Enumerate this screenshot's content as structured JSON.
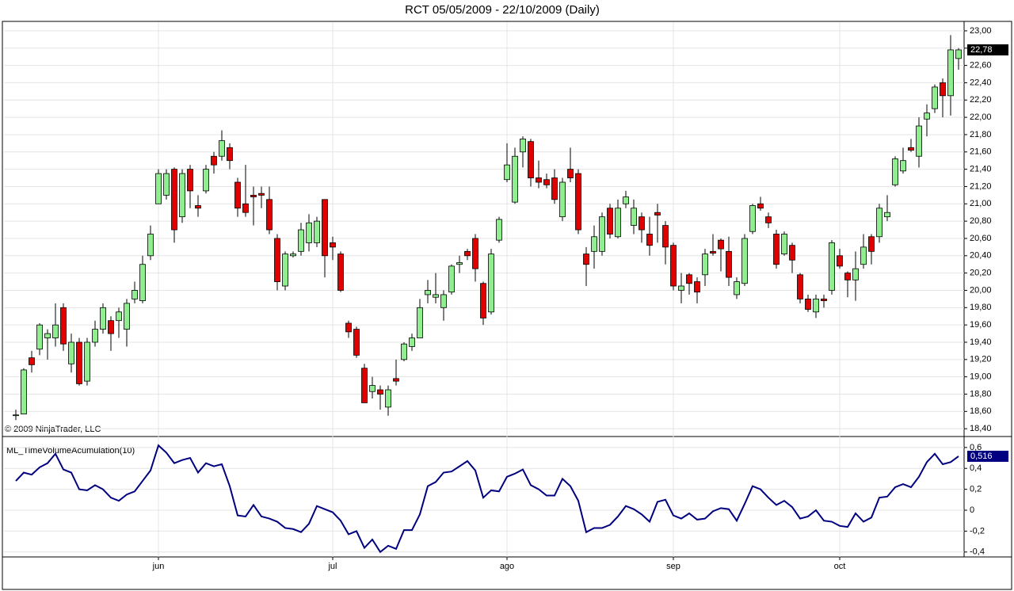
{
  "chart_data": [
    {
      "type": "candlestick",
      "title": "RCT  05/05/2009 - 22/10/2009 (Daily)",
      "copyright": "© 2009 NinjaTrader, LLC",
      "up_color": "#90ee90",
      "down_color": "#e00000",
      "grid": true,
      "open": [
        18.56,
        18.57,
        19.22,
        19.32,
        19.45,
        19.45,
        19.8,
        19.15,
        19.4,
        18.95,
        19.4,
        19.55,
        19.65,
        19.65,
        19.55,
        19.9,
        19.88,
        20.4,
        21.0,
        21.1,
        21.4,
        20.85,
        21.4,
        20.98,
        21.15,
        21.55,
        21.55,
        21.65,
        21.25,
        21.0,
        21.1,
        21.12,
        21.05,
        20.6,
        20.05,
        20.4,
        20.45,
        20.55,
        20.55,
        21.05,
        20.55,
        20.42,
        19.62,
        19.55,
        19.1,
        18.83,
        18.85,
        18.65,
        18.98,
        19.2,
        19.35,
        19.45,
        19.95,
        19.92,
        19.8,
        19.98,
        20.3,
        20.45,
        20.6,
        20.08,
        19.75,
        20.58,
        21.28,
        21.02,
        21.6,
        21.72,
        21.3,
        21.28,
        21.3,
        20.85,
        21.4,
        21.35,
        20.42,
        20.45,
        20.45,
        20.95,
        20.62,
        21.0,
        20.75,
        20.85,
        20.65,
        20.9,
        20.75,
        20.52,
        20.0,
        20.18,
        20.1,
        20.18,
        20.45,
        20.58,
        20.45,
        19.95,
        20.08,
        20.68,
        21.0,
        20.85,
        20.65,
        20.42,
        20.52,
        20.18,
        19.9,
        19.75,
        19.9,
        20.0,
        20.4,
        20.2,
        20.12,
        20.3,
        20.62,
        20.62,
        20.85,
        21.22,
        21.38,
        21.65,
        21.55,
        21.98,
        22.1,
        22.4,
        22.25,
        22.68
      ],
      "high": [
        18.62,
        19.1,
        19.3,
        19.62,
        19.55,
        19.85,
        19.85,
        19.5,
        19.45,
        19.45,
        19.65,
        19.85,
        19.7,
        19.8,
        19.9,
        20.1,
        20.4,
        20.75,
        21.4,
        21.4,
        21.42,
        21.4,
        21.45,
        21.1,
        21.45,
        21.6,
        21.85,
        21.7,
        21.3,
        21.45,
        21.2,
        21.2,
        21.2,
        20.65,
        20.45,
        20.45,
        20.78,
        20.88,
        20.85,
        21.05,
        20.62,
        20.45,
        19.65,
        19.58,
        19.15,
        19.0,
        18.9,
        18.9,
        19.2,
        19.4,
        19.5,
        19.9,
        20.12,
        20.2,
        20.0,
        20.3,
        20.4,
        20.48,
        20.65,
        20.1,
        20.48,
        20.85,
        21.7,
        21.65,
        21.78,
        21.75,
        21.5,
        21.35,
        21.4,
        21.3,
        21.65,
        21.4,
        20.5,
        20.75,
        20.9,
        21.0,
        21.05,
        21.15,
        21.05,
        20.9,
        20.85,
        21.0,
        20.8,
        20.55,
        20.2,
        20.2,
        20.15,
        20.48,
        20.65,
        20.6,
        20.62,
        20.15,
        20.65,
        21.0,
        21.08,
        20.9,
        20.7,
        20.68,
        20.55,
        20.2,
        19.95,
        19.95,
        19.95,
        20.58,
        20.48,
        20.22,
        20.45,
        20.65,
        20.65,
        21.0,
        21.1,
        21.55,
        21.65,
        21.75,
        22.0,
        22.15,
        22.38,
        22.45,
        22.95,
        22.8
      ],
      "low": [
        18.5,
        18.57,
        19.05,
        19.25,
        19.2,
        19.35,
        19.3,
        19.05,
        18.9,
        18.9,
        19.35,
        19.5,
        19.3,
        19.45,
        19.35,
        19.85,
        19.85,
        20.35,
        21.0,
        21.05,
        20.55,
        20.78,
        20.95,
        20.85,
        21.12,
        21.35,
        21.5,
        21.4,
        20.85,
        20.85,
        20.75,
        20.95,
        20.65,
        20.0,
        20.0,
        20.38,
        20.4,
        20.45,
        20.5,
        20.15,
        20.35,
        19.98,
        19.45,
        19.22,
        18.7,
        18.75,
        18.62,
        18.55,
        18.9,
        19.18,
        19.3,
        19.45,
        19.85,
        19.85,
        19.65,
        19.95,
        20.2,
        20.35,
        20.1,
        19.6,
        19.72,
        20.55,
        21.25,
        21.0,
        21.42,
        21.2,
        21.18,
        21.18,
        21.0,
        20.8,
        21.25,
        20.65,
        20.05,
        20.25,
        20.4,
        20.6,
        20.6,
        20.95,
        20.65,
        20.55,
        20.4,
        20.55,
        20.3,
        20.0,
        19.85,
        19.95,
        19.85,
        20.05,
        20.4,
        20.22,
        20.05,
        19.9,
        20.05,
        20.65,
        20.92,
        20.72,
        20.25,
        20.4,
        20.2,
        19.85,
        19.75,
        19.68,
        19.8,
        19.95,
        20.25,
        19.92,
        19.88,
        20.25,
        20.3,
        20.55,
        20.8,
        21.2,
        21.35,
        21.6,
        21.42,
        21.78,
        22.05,
        22.0,
        22.02,
        22.55
      ],
      "close": [
        18.56,
        19.08,
        19.14,
        19.6,
        19.5,
        19.6,
        19.38,
        19.4,
        18.92,
        19.4,
        19.55,
        19.8,
        19.5,
        19.75,
        19.85,
        20.0,
        20.3,
        20.65,
        21.35,
        21.35,
        20.7,
        21.35,
        21.15,
        20.95,
        21.4,
        21.45,
        21.73,
        21.5,
        20.95,
        20.9,
        21.08,
        21.1,
        20.7,
        20.1,
        20.42,
        20.42,
        20.7,
        20.78,
        20.8,
        20.4,
        20.5,
        20.0,
        19.52,
        19.25,
        18.7,
        18.9,
        18.8,
        18.85,
        18.95,
        19.38,
        19.45,
        19.8,
        20.0,
        19.95,
        19.95,
        20.28,
        20.32,
        20.4,
        20.25,
        19.68,
        20.42,
        20.82,
        21.45,
        21.55,
        21.75,
        21.3,
        21.25,
        21.22,
        21.05,
        21.25,
        21.3,
        20.7,
        20.3,
        20.62,
        20.85,
        20.65,
        20.95,
        21.08,
        20.95,
        20.7,
        20.52,
        20.87,
        20.5,
        20.05,
        20.05,
        20.08,
        19.98,
        20.42,
        20.43,
        20.48,
        20.15,
        20.1,
        20.6,
        20.98,
        20.95,
        20.78,
        20.3,
        20.65,
        20.35,
        19.9,
        19.78,
        19.9,
        19.88,
        20.55,
        20.28,
        20.12,
        20.25,
        20.5,
        20.45,
        20.95,
        20.9,
        21.52,
        21.5,
        21.62,
        21.9,
        22.05,
        22.35,
        22.25,
        22.78,
        22.78
      ],
      "last_value_label": "22,78",
      "xlim": [
        -1.5,
        119.7
      ],
      "xticks": [
        {
          "value": 18,
          "label": "jun"
        },
        {
          "value": 40,
          "label": "jul"
        },
        {
          "value": 62,
          "label": "ago"
        },
        {
          "value": 83,
          "label": "sep"
        },
        {
          "value": 104,
          "label": "oct"
        }
      ],
      "ylim": [
        18.31,
        23.1
      ],
      "yticks": [
        {
          "value": 18.4,
          "label": "18,40"
        },
        {
          "value": 18.6,
          "label": "18,60"
        },
        {
          "value": 18.8,
          "label": "18,80"
        },
        {
          "value": 19,
          "label": "19,00"
        },
        {
          "value": 19.2,
          "label": "19,20"
        },
        {
          "value": 19.4,
          "label": "19,40"
        },
        {
          "value": 19.6,
          "label": "19,60"
        },
        {
          "value": 19.8,
          "label": "19,80"
        },
        {
          "value": 20,
          "label": "20,00"
        },
        {
          "value": 20.2,
          "label": "20,20"
        },
        {
          "value": 20.4,
          "label": "20,40"
        },
        {
          "value": 20.6,
          "label": "20,60"
        },
        {
          "value": 20.8,
          "label": "20,80"
        },
        {
          "value": 21,
          "label": "21,00"
        },
        {
          "value": 21.2,
          "label": "21,20"
        },
        {
          "value": 21.4,
          "label": "21,40"
        },
        {
          "value": 21.6,
          "label": "21,60"
        },
        {
          "value": 21.8,
          "label": "21,80"
        },
        {
          "value": 22,
          "label": "22,00"
        },
        {
          "value": 22.2,
          "label": "22,20"
        },
        {
          "value": 22.4,
          "label": "22,40"
        },
        {
          "value": 22.6,
          "label": "22,60"
        },
        {
          "value": 22.8,
          "label": "22,80"
        },
        {
          "value": 23,
          "label": "23,00"
        }
      ]
    },
    {
      "type": "line",
      "title": "ML_TimeVolumeAcumulation(10)",
      "grid": true,
      "series": [
        {
          "color": "#000080",
          "values": [
            0.28,
            0.36,
            0.34,
            0.41,
            0.45,
            0.54,
            0.39,
            0.36,
            0.2,
            0.19,
            0.24,
            0.2,
            0.12,
            0.09,
            0.15,
            0.18,
            0.28,
            0.38,
            0.62,
            0.55,
            0.45,
            0.48,
            0.5,
            0.36,
            0.45,
            0.42,
            0.44,
            0.23,
            -0.05,
            -0.06,
            0.05,
            -0.06,
            -0.08,
            -0.11,
            -0.17,
            -0.18,
            -0.21,
            -0.13,
            0.04,
            0.01,
            -0.02,
            -0.1,
            -0.23,
            -0.2,
            -0.36,
            -0.28,
            -0.4,
            -0.34,
            -0.37,
            -0.19,
            -0.19,
            -0.04,
            0.23,
            0.27,
            0.36,
            0.37,
            0.42,
            0.47,
            0.38,
            0.12,
            0.19,
            0.18,
            0.32,
            0.35,
            0.39,
            0.24,
            0.2,
            0.14,
            0.14,
            0.3,
            0.23,
            0.09,
            -0.21,
            -0.17,
            -0.17,
            -0.14,
            -0.06,
            0.04,
            0.01,
            -0.04,
            -0.11,
            0.08,
            0.1,
            -0.05,
            -0.08,
            -0.03,
            -0.09,
            -0.08,
            -0.01,
            0.02,
            0.01,
            -0.1,
            0.06,
            0.23,
            0.2,
            0.12,
            0.05,
            0.09,
            0.03,
            -0.08,
            -0.06,
            0.0,
            -0.1,
            -0.11,
            -0.15,
            -0.16,
            -0.03,
            -0.11,
            -0.07,
            0.12,
            0.13,
            0.22,
            0.25,
            0.22,
            0.32,
            0.46,
            0.54,
            0.44,
            0.46,
            0.516
          ]
        }
      ],
      "last_value_label": "0,516",
      "ylim": [
        -0.447,
        0.705
      ],
      "yticks": [
        {
          "value": -0.4,
          "label": "-0,4"
        },
        {
          "value": -0.2,
          "label": "-0,2"
        },
        0,
        {
          "value": 0.2,
          "label": "0,2"
        },
        {
          "value": 0.4,
          "label": "0,4"
        },
        {
          "value": 0.6,
          "label": "0,6"
        }
      ]
    }
  ]
}
